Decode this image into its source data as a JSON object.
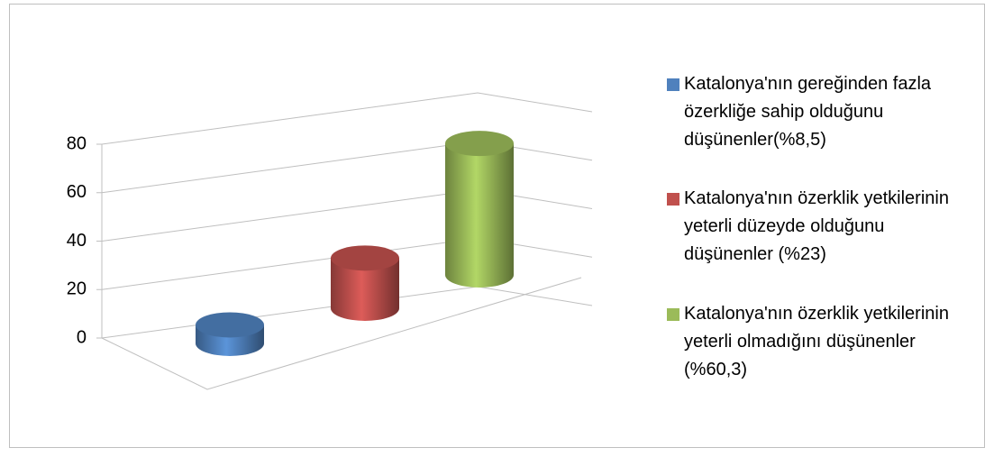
{
  "chart_data": {
    "type": "bar",
    "series": [
      {
        "name": "Katalonya'nın gereğinden fazla özerkliğe sahip olduğunu düşünenler(%8,5)",
        "color": "#4f81bd",
        "values": [
          8.5
        ]
      },
      {
        "name": "Katalonya'nın özerklik yetkilerinin yeterli düzeyde olduğunu düşünenler (%23)",
        "color": "#c0504d",
        "values": [
          23
        ]
      },
      {
        "name": "Katalonya'nın özerklik yetkilerinin yeterli olmadığını düşünenler (%60,3)",
        "color": "#9bbb59",
        "values": [
          60.3
        ]
      }
    ],
    "ylim": [
      0,
      80
    ],
    "yticks": [
      0,
      20,
      40,
      60,
      80
    ],
    "grid": true
  }
}
